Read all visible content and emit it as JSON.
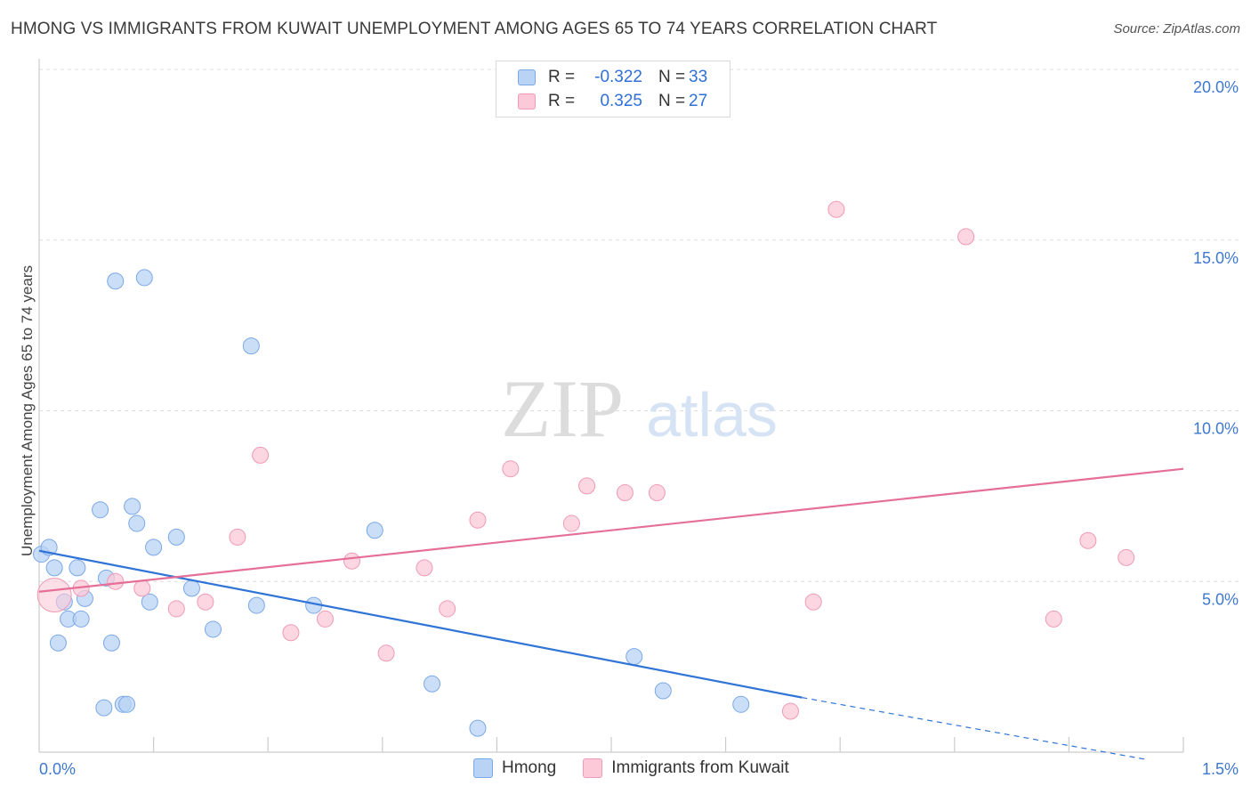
{
  "title": "HMONG VS IMMIGRANTS FROM KUWAIT UNEMPLOYMENT AMONG AGES 65 TO 74 YEARS CORRELATION CHART",
  "source": "Source: ZipAtlas.com",
  "watermark": {
    "zip": "ZIP",
    "atlas": "atlas"
  },
  "legend": {
    "rows": [
      {
        "r_label": "R =",
        "r_value": "-0.322",
        "n_label": "N =",
        "n_value": "33"
      },
      {
        "r_label": "R =",
        "r_value": "0.325",
        "n_label": "N =",
        "n_value": "27"
      }
    ]
  },
  "bottom_legend": [
    "Hmong",
    "Immigrants from Kuwait"
  ],
  "colors": {
    "blue_fill": "#b9d3f5",
    "blue_stroke": "#7aa8e6",
    "blue_line": "#2f74d6",
    "pink_fill": "#fbc9d8",
    "pink_stroke": "#ef9ab6",
    "pink_line": "#e56f98",
    "tick_label": "#3f78cf",
    "grid": "#dddddd"
  },
  "chart_data": {
    "type": "scatter",
    "title": "HMONG VS IMMIGRANTS FROM KUWAIT UNEMPLOYMENT AMONG AGES 65 TO 74 YEARS CORRELATION CHART",
    "xlabel": "",
    "ylabel": "Unemployment Among Ages 65 to 74 years",
    "xlim": [
      0,
      1.5
    ],
    "ylim": [
      0,
      20
    ],
    "x_tick_labels": [
      {
        "value": 0,
        "label": "0.0%"
      },
      {
        "value": 1.5,
        "label": "1.5%"
      }
    ],
    "y_tick_labels": [
      {
        "value": 5,
        "label": "5.0%"
      },
      {
        "value": 10,
        "label": "10.0%"
      },
      {
        "value": 15,
        "label": "15.0%"
      },
      {
        "value": 20,
        "label": "20.0%"
      }
    ],
    "x_minor_ticks": [
      0.15,
      0.3,
      0.45,
      0.6,
      0.75,
      0.9,
      1.05,
      1.2,
      1.35
    ],
    "series": [
      {
        "name": "Hmong",
        "R": -0.322,
        "N": 33,
        "points": [
          [
            0.003,
            5.8
          ],
          [
            0.013,
            6.0
          ],
          [
            0.02,
            5.4
          ],
          [
            0.025,
            3.2
          ],
          [
            0.033,
            4.4
          ],
          [
            0.038,
            3.9
          ],
          [
            0.05,
            5.4
          ],
          [
            0.055,
            3.9
          ],
          [
            0.06,
            4.5
          ],
          [
            0.08,
            7.1
          ],
          [
            0.085,
            1.3
          ],
          [
            0.088,
            5.1
          ],
          [
            0.095,
            3.2
          ],
          [
            0.1,
            13.8
          ],
          [
            0.11,
            1.4
          ],
          [
            0.115,
            1.4
          ],
          [
            0.122,
            7.2
          ],
          [
            0.128,
            6.7
          ],
          [
            0.138,
            13.9
          ],
          [
            0.145,
            4.4
          ],
          [
            0.15,
            6.0
          ],
          [
            0.18,
            6.3
          ],
          [
            0.2,
            4.8
          ],
          [
            0.228,
            3.6
          ],
          [
            0.278,
            11.9
          ],
          [
            0.285,
            4.3
          ],
          [
            0.36,
            4.3
          ],
          [
            0.44,
            6.5
          ],
          [
            0.515,
            2.0
          ],
          [
            0.575,
            0.7
          ],
          [
            0.78,
            2.8
          ],
          [
            0.818,
            1.8
          ],
          [
            0.92,
            1.4
          ]
        ],
        "trend": {
          "x": [
            0,
            1.0
          ],
          "y": [
            5.9,
            1.6
          ]
        },
        "trend_dashed": {
          "x": [
            1.0,
            1.45
          ],
          "y": [
            1.6,
            -0.4
          ]
        }
      },
      {
        "name": "Immigrants from Kuwait",
        "R": 0.325,
        "N": 27,
        "points": [
          [
            0.02,
            4.6
          ],
          [
            0.055,
            4.8
          ],
          [
            0.1,
            5.0
          ],
          [
            0.135,
            4.8
          ],
          [
            0.18,
            4.2
          ],
          [
            0.218,
            4.4
          ],
          [
            0.26,
            6.3
          ],
          [
            0.29,
            8.7
          ],
          [
            0.33,
            3.5
          ],
          [
            0.375,
            3.9
          ],
          [
            0.41,
            5.6
          ],
          [
            0.455,
            2.9
          ],
          [
            0.505,
            5.4
          ],
          [
            0.535,
            4.2
          ],
          [
            0.575,
            6.8
          ],
          [
            0.618,
            8.3
          ],
          [
            0.698,
            6.7
          ],
          [
            0.718,
            7.8
          ],
          [
            0.768,
            7.6
          ],
          [
            0.81,
            7.6
          ],
          [
            0.985,
            1.2
          ],
          [
            1.015,
            4.4
          ],
          [
            1.045,
            15.9
          ],
          [
            1.215,
            15.1
          ],
          [
            1.33,
            3.9
          ],
          [
            1.375,
            6.2
          ],
          [
            1.425,
            5.7
          ]
        ],
        "trend": {
          "x": [
            0,
            1.5
          ],
          "y": [
            4.7,
            8.3
          ]
        }
      }
    ]
  }
}
